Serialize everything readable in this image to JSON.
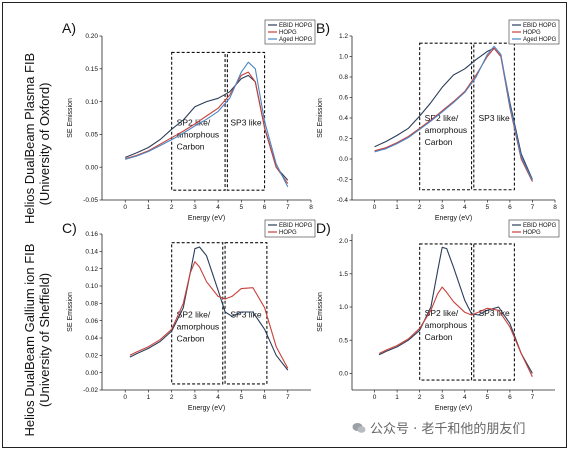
{
  "row_labels": {
    "top": {
      "line1": "Helios DualBeam Plasma FIB",
      "line2": "(University of Oxford)"
    },
    "bottom": {
      "line1": "Helios DualBeam Gallium ion FIB",
      "line2": "(University of Sheffield)"
    }
  },
  "watermark": "公众号 · 老千和他的朋友们",
  "colors": {
    "ebid": "#2b3d5a",
    "hopg": "#c8403a",
    "aged": "#4a86c5"
  },
  "chart_data": [
    {
      "panel": "A)",
      "type": "line",
      "xlabel": "Energy (eV)",
      "ylabel": "SE Emission",
      "xlim": [
        -1,
        8
      ],
      "ylim": [
        -0.05,
        0.2
      ],
      "xticks": [
        0,
        1,
        2,
        3,
        4,
        5,
        6,
        7,
        8
      ],
      "yticks": [
        -0.05,
        0.0,
        0.05,
        0.1,
        0.15,
        0.2
      ],
      "ytick_labels": [
        "-0.05",
        "0.00",
        "0.05",
        "0.10",
        "0.15",
        "0.20"
      ],
      "legend": "top-right",
      "regions": [
        {
          "label_lines": [
            "SP2 like/",
            "amorphous",
            "Carbon"
          ],
          "x": [
            2.0,
            4.3
          ],
          "y": [
            -0.035,
            0.175
          ]
        },
        {
          "label_lines": [
            "SP3 like"
          ],
          "x": [
            4.4,
            6.0
          ],
          "y": [
            -0.035,
            0.175
          ]
        }
      ],
      "series": [
        {
          "name": "EBID HOPG",
          "color": "#2b3d5a",
          "x": [
            0,
            0.5,
            1,
            1.5,
            2,
            2.5,
            3,
            3.5,
            4,
            4.5,
            5,
            5.3,
            5.6,
            6,
            6.5,
            7
          ],
          "y": [
            0.015,
            0.022,
            0.03,
            0.042,
            0.058,
            0.072,
            0.092,
            0.1,
            0.105,
            0.115,
            0.135,
            0.14,
            0.13,
            0.06,
            0.0,
            -0.02
          ]
        },
        {
          "name": "HOPG",
          "color": "#c8403a",
          "x": [
            0,
            0.5,
            1,
            1.5,
            2,
            2.5,
            3,
            3.5,
            4,
            4.5,
            5,
            5.3,
            5.6,
            6,
            6.5,
            7
          ],
          "y": [
            0.013,
            0.018,
            0.025,
            0.035,
            0.045,
            0.055,
            0.066,
            0.078,
            0.09,
            0.11,
            0.14,
            0.145,
            0.13,
            0.06,
            0.0,
            -0.025
          ]
        },
        {
          "name": "Aged HOPG",
          "color": "#4a86c5",
          "x": [
            0,
            0.5,
            1,
            1.5,
            2,
            2.5,
            3,
            3.5,
            4,
            4.5,
            5,
            5.3,
            5.6,
            6,
            6.5,
            7
          ],
          "y": [
            0.012,
            0.017,
            0.024,
            0.033,
            0.042,
            0.052,
            0.063,
            0.073,
            0.085,
            0.105,
            0.145,
            0.16,
            0.15,
            0.07,
            0.005,
            -0.03
          ]
        }
      ]
    },
    {
      "panel": "B)",
      "type": "line",
      "xlabel": "Energy (eV)",
      "ylabel": "SE Emission",
      "xlim": [
        -1,
        8
      ],
      "ylim": [
        -0.4,
        1.2
      ],
      "xticks": [
        0,
        1,
        2,
        3,
        4,
        5,
        6,
        7,
        8
      ],
      "yticks": [
        -0.4,
        -0.2,
        0.0,
        0.2,
        0.4,
        0.6,
        0.8,
        1.0,
        1.2
      ],
      "ytick_labels": [
        "-0.4",
        "-0.2",
        "0.0",
        "0.2",
        "0.4",
        "0.6",
        "0.8",
        "1.0",
        "1.2"
      ],
      "legend": "top-right",
      "regions": [
        {
          "label_lines": [
            "SP2 like/",
            "amorphous",
            "Carbon"
          ],
          "x": [
            2.0,
            4.3
          ],
          "y": [
            -0.3,
            1.13
          ]
        },
        {
          "label_lines": [
            "SP3 like"
          ],
          "x": [
            4.4,
            6.2
          ],
          "y": [
            -0.3,
            1.13
          ]
        }
      ],
      "series": [
        {
          "name": "EBID HOPG",
          "color": "#2b3d5a",
          "x": [
            0,
            0.5,
            1,
            1.5,
            2,
            2.5,
            3,
            3.5,
            4,
            4.5,
            5,
            5.3,
            5.6,
            6,
            6.5,
            7
          ],
          "y": [
            0.12,
            0.17,
            0.23,
            0.3,
            0.42,
            0.55,
            0.7,
            0.82,
            0.88,
            0.97,
            1.05,
            1.08,
            1.0,
            0.55,
            0.05,
            -0.2
          ]
        },
        {
          "name": "HOPG",
          "color": "#c8403a",
          "x": [
            0,
            0.5,
            1,
            1.5,
            2,
            2.5,
            3,
            3.5,
            4,
            4.5,
            5,
            5.3,
            5.6,
            6,
            6.5,
            7
          ],
          "y": [
            0.08,
            0.11,
            0.16,
            0.22,
            0.3,
            0.38,
            0.47,
            0.56,
            0.66,
            0.82,
            1.0,
            1.08,
            1.0,
            0.5,
            0.0,
            -0.22
          ]
        },
        {
          "name": "Aged HOPG",
          "color": "#4a86c5",
          "x": [
            0,
            0.5,
            1,
            1.5,
            2,
            2.5,
            3,
            3.5,
            4,
            4.5,
            5,
            5.3,
            5.6,
            6,
            6.5,
            7
          ],
          "y": [
            0.07,
            0.1,
            0.15,
            0.21,
            0.29,
            0.37,
            0.46,
            0.55,
            0.65,
            0.8,
            1.02,
            1.1,
            1.02,
            0.52,
            0.02,
            -0.21
          ]
        }
      ]
    },
    {
      "panel": "C)",
      "type": "line",
      "xlabel": "Energy (eV)",
      "ylabel": "SE Emission",
      "xlim": [
        -1,
        8
      ],
      "ylim": [
        -0.02,
        0.16
      ],
      "xticks": [
        0,
        1,
        2,
        3,
        4,
        5,
        6,
        7
      ],
      "yticks": [
        -0.02,
        0.0,
        0.02,
        0.04,
        0.06,
        0.08,
        0.1,
        0.12,
        0.14,
        0.16
      ],
      "ytick_labels": [
        "-0.02",
        "0.00",
        "0.02",
        "0.04",
        "0.06",
        "0.08",
        "0.10",
        "0.12",
        "0.14",
        "0.16"
      ],
      "legend": "top-right",
      "regions": [
        {
          "label_lines": [
            "SP2 like/",
            "amorphous",
            "Carbon"
          ],
          "x": [
            2.0,
            4.2
          ],
          "y": [
            -0.013,
            0.15
          ]
        },
        {
          "label_lines": [
            "SP3 like"
          ],
          "x": [
            4.3,
            6.1
          ],
          "y": [
            -0.013,
            0.15
          ]
        }
      ],
      "series": [
        {
          "name": "EBID HOPG",
          "color": "#2b3d5a",
          "x": [
            0.2,
            0.5,
            1,
            1.5,
            2,
            2.5,
            2.8,
            3,
            3.2,
            3.5,
            4,
            4.3,
            4.6,
            5,
            5.5,
            6,
            6.5,
            7
          ],
          "y": [
            0.018,
            0.022,
            0.028,
            0.036,
            0.048,
            0.075,
            0.115,
            0.143,
            0.145,
            0.135,
            0.095,
            0.07,
            0.065,
            0.07,
            0.07,
            0.05,
            0.02,
            0.003
          ]
        },
        {
          "name": "HOPG",
          "color": "#c8403a",
          "x": [
            0.2,
            0.5,
            1,
            1.5,
            2,
            2.5,
            2.8,
            3,
            3.2,
            3.5,
            4,
            4.3,
            4.6,
            5,
            5.5,
            6,
            6.5,
            7
          ],
          "y": [
            0.02,
            0.024,
            0.03,
            0.038,
            0.05,
            0.08,
            0.115,
            0.128,
            0.122,
            0.105,
            0.088,
            0.085,
            0.088,
            0.097,
            0.098,
            0.075,
            0.03,
            0.005
          ]
        }
      ]
    },
    {
      "panel": "D)",
      "type": "line",
      "xlabel": "Energy (eV)",
      "ylabel": "SE Emission",
      "xlim": [
        -1,
        8
      ],
      "ylim": [
        -0.25,
        2.1
      ],
      "xticks": [
        0,
        1,
        2,
        3,
        4,
        5,
        6,
        7
      ],
      "yticks": [
        0.0,
        0.5,
        1.0,
        1.5,
        2.0
      ],
      "ytick_labels": [
        "0.0",
        "0.5",
        "1.0",
        "1.5",
        "2.0"
      ],
      "legend": "top-right",
      "regions": [
        {
          "label_lines": [
            "SP2 like/",
            "amorphous",
            "Carbon"
          ],
          "x": [
            2.0,
            4.3
          ],
          "y": [
            -0.1,
            1.95
          ]
        },
        {
          "label_lines": [
            "SP3 like"
          ],
          "x": [
            4.4,
            6.2
          ],
          "y": [
            -0.1,
            1.95
          ]
        }
      ],
      "series": [
        {
          "name": "EBID HOPG",
          "color": "#2b3d5a",
          "x": [
            0.2,
            0.5,
            1,
            1.5,
            2,
            2.5,
            2.8,
            3,
            3.2,
            3.5,
            4,
            4.3,
            4.6,
            5,
            5.5,
            6,
            6.5,
            7
          ],
          "y": [
            0.28,
            0.33,
            0.4,
            0.5,
            0.65,
            1.0,
            1.55,
            1.9,
            1.88,
            1.6,
            1.1,
            0.9,
            0.88,
            0.95,
            1.0,
            0.75,
            0.3,
            0.0
          ]
        },
        {
          "name": "HOPG",
          "color": "#c8403a",
          "x": [
            0.2,
            0.5,
            1,
            1.5,
            2,
            2.5,
            2.8,
            3,
            3.2,
            3.5,
            4,
            4.3,
            4.6,
            5,
            5.5,
            6,
            6.5,
            7
          ],
          "y": [
            0.3,
            0.35,
            0.42,
            0.52,
            0.68,
            0.95,
            1.2,
            1.3,
            1.22,
            1.08,
            0.92,
            0.88,
            0.92,
            0.98,
            0.95,
            0.7,
            0.3,
            -0.05
          ]
        }
      ]
    }
  ]
}
